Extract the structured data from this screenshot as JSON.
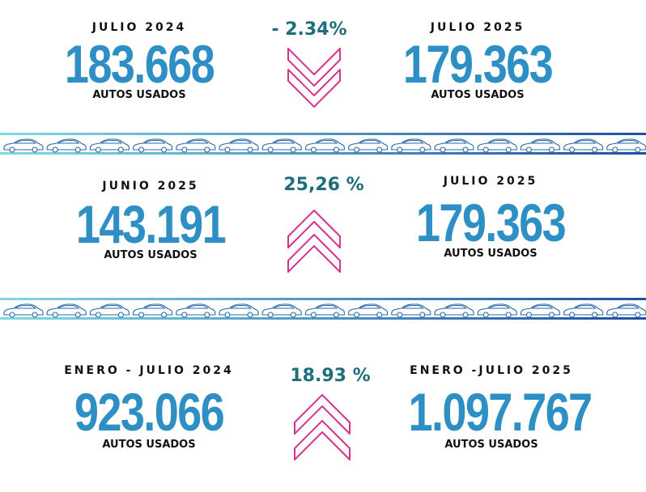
{
  "colors": {
    "number": "#2e8fc4",
    "label": "#111111",
    "percent": "#1f6f7a",
    "chevron": "#d6338e",
    "divider_start": "#7fdbe3",
    "divider_end": "#1f4fa0"
  },
  "rows": [
    {
      "left": {
        "period": "JULIO 2024",
        "value": "183.668",
        "unit": "AUTOS USADOS"
      },
      "change": {
        "percent": "- 2.34%",
        "direction": "down",
        "icon": "double-chevron-down-icon"
      },
      "right": {
        "period": "JULIO 2025",
        "value": "179.363",
        "unit": "AUTOS USADOS"
      }
    },
    {
      "left": {
        "period": "JUNIO 2025",
        "value": "143.191",
        "unit": "AUTOS USADOS"
      },
      "change": {
        "percent": "25,26 %",
        "direction": "up",
        "icon": "double-chevron-up-icon"
      },
      "right": {
        "period": "JULIO 2025",
        "value": "179.363",
        "unit": "AUTOS USADOS"
      }
    },
    {
      "left": {
        "period": "ENERO - JULIO  2024",
        "value": "923.066",
        "unit": "AUTOS USADOS"
      },
      "change": {
        "percent": "18.93  %",
        "direction": "up",
        "icon": "double-chevron-up-icon"
      },
      "right": {
        "period": "ENERO -JULIO 2025",
        "value": "1.097.767",
        "unit": "AUTOS USADOS"
      }
    }
  ],
  "dividers": [
    {
      "icon": "car-outline-icon",
      "count": 15
    },
    {
      "icon": "car-outline-icon",
      "count": 15
    }
  ]
}
